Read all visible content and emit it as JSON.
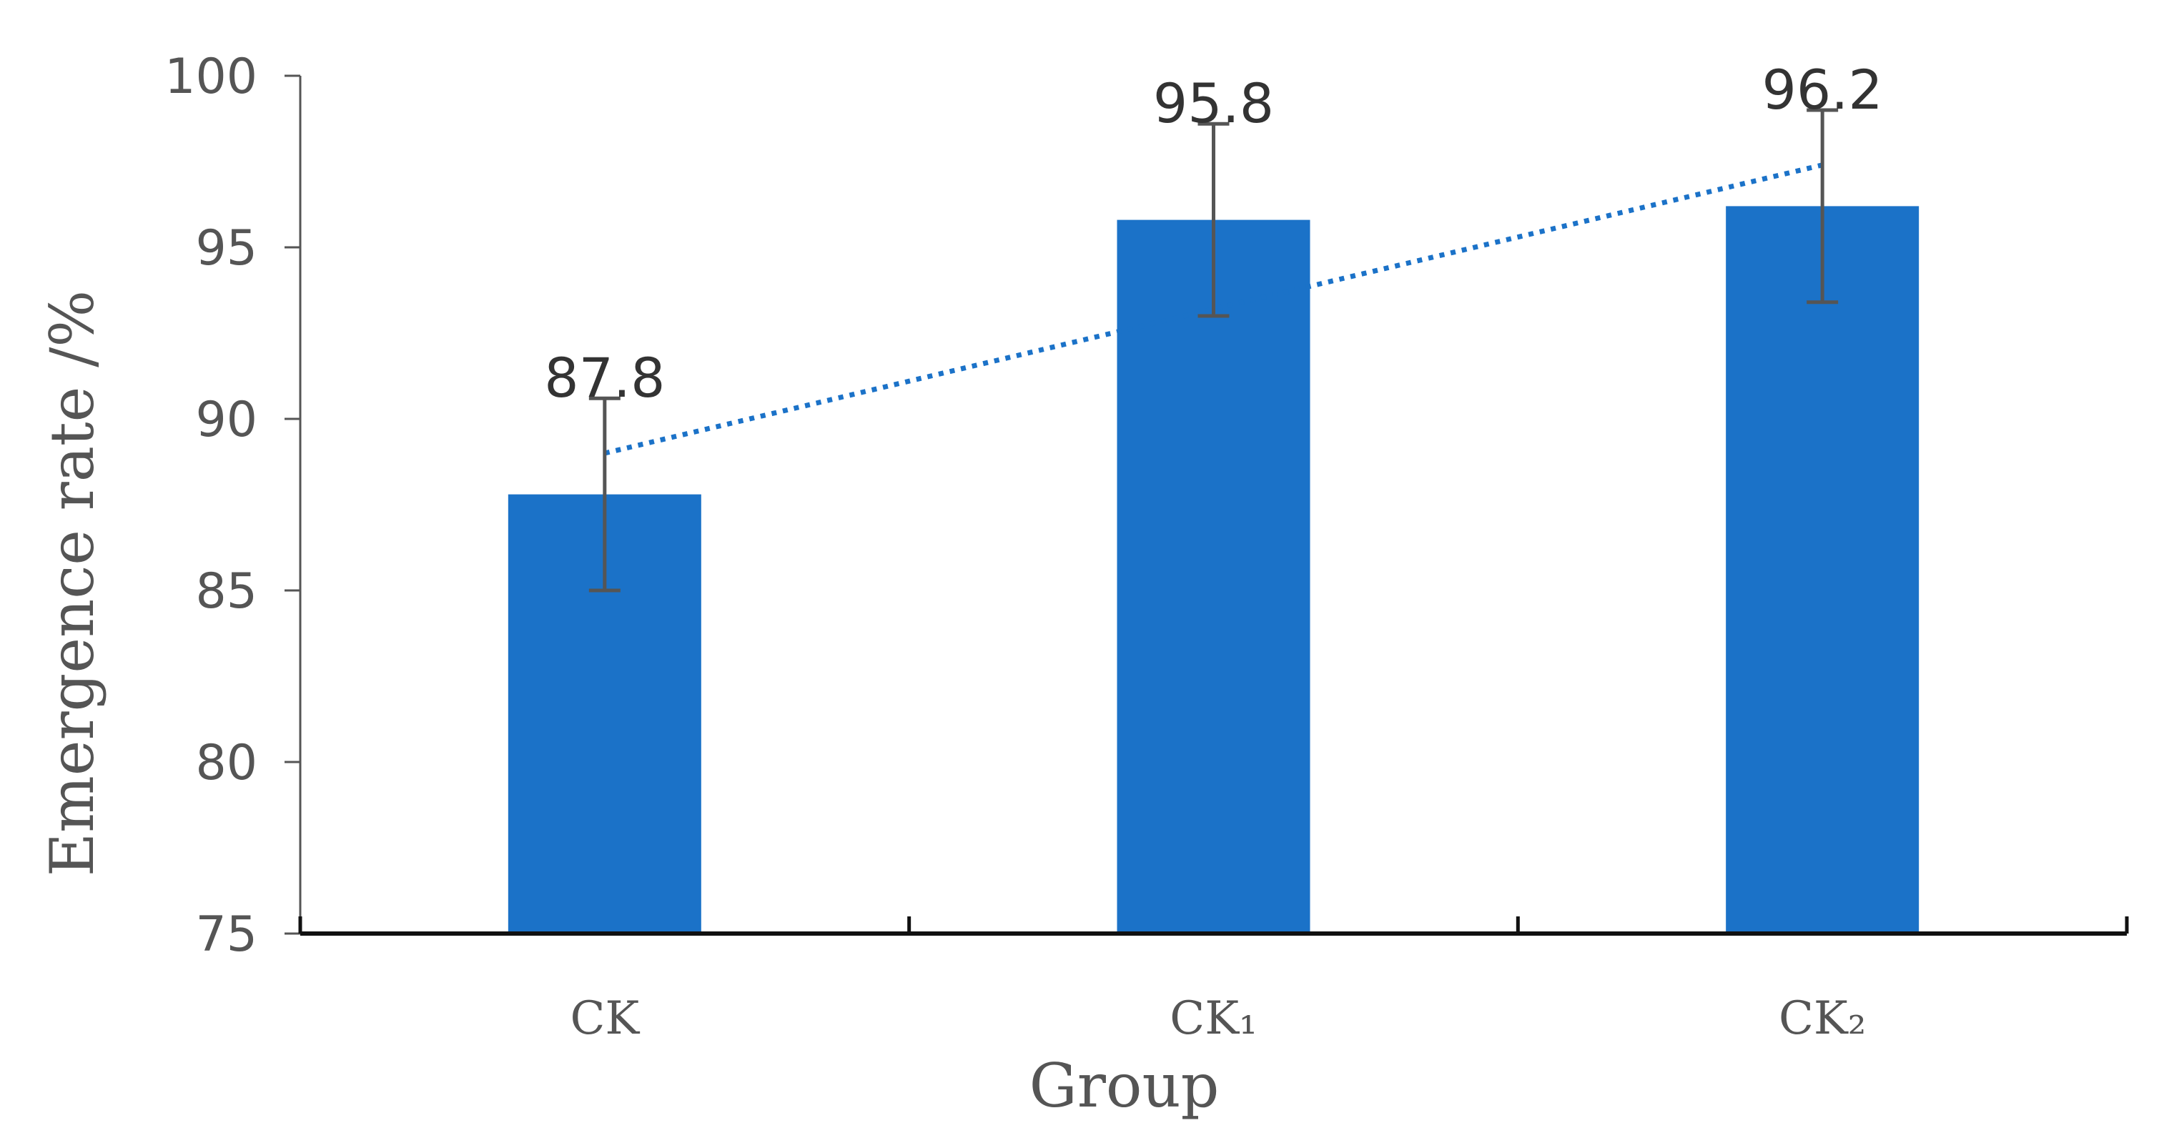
{
  "chart_data": {
    "type": "bar",
    "categories": [
      "CK",
      "CK₁",
      "CK₂"
    ],
    "values": [
      87.8,
      95.8,
      96.2
    ],
    "data_labels": [
      "87.8",
      "95.8",
      "96.2"
    ],
    "error_bars": {
      "upper": [
        90.6,
        98.6,
        99.0
      ],
      "lower": [
        85.0,
        93.0,
        93.4
      ]
    },
    "trendline": {
      "type": "linear",
      "style": "dotted",
      "start": 89.0,
      "end": 97.4
    },
    "xlabel": "Group",
    "ylabel": "Emergence rate /%",
    "ylim": [
      75,
      100
    ],
    "yticks": [
      "75",
      "80",
      "85",
      "90",
      "95",
      "100"
    ],
    "grid": false,
    "legend": "none",
    "colors": {
      "bar": "#1B72C8",
      "error_bar": "#555555",
      "trendline": "#1B72C8",
      "axis": "#111111",
      "ytick_mark": "#555555"
    }
  }
}
